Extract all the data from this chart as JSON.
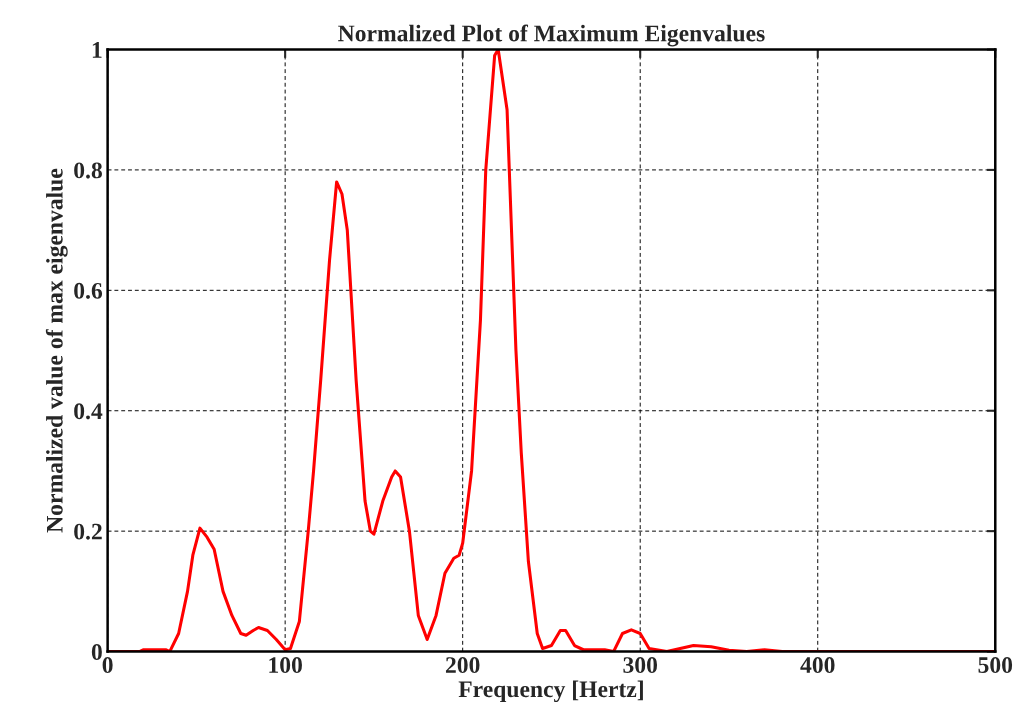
{
  "chart_data": {
    "type": "line",
    "title": "Normalized Plot of Maximum Eigenvalues",
    "xlabel": "Frequency [Hertz]",
    "ylabel": "Normalized value of max eigenvalue",
    "series": [
      {
        "color": "#ff0000",
        "x": [
          0,
          18,
          20,
          33,
          35,
          40,
          45,
          48,
          52,
          56,
          60,
          65,
          70,
          75,
          78,
          82,
          85,
          90,
          95,
          100,
          103,
          108,
          113,
          116,
          120,
          125,
          129,
          132,
          135,
          140,
          145,
          148,
          150,
          155,
          160,
          162,
          165,
          170,
          175,
          180,
          185,
          190,
          195,
          198,
          200,
          205,
          210,
          213,
          218,
          220,
          225,
          230,
          233,
          237,
          242,
          245,
          250,
          255,
          258,
          263,
          268,
          280,
          285,
          290,
          295,
          300,
          305,
          315,
          330,
          340,
          350,
          360,
          370,
          380,
          500
        ],
        "values": [
          0,
          0,
          0.003,
          0.003,
          0,
          0.03,
          0.1,
          0.16,
          0.205,
          0.19,
          0.17,
          0.1,
          0.06,
          0.03,
          0.027,
          0.035,
          0.04,
          0.035,
          0.02,
          0.003,
          0.005,
          0.05,
          0.2,
          0.3,
          0.45,
          0.65,
          0.78,
          0.76,
          0.7,
          0.45,
          0.25,
          0.2,
          0.195,
          0.25,
          0.29,
          0.3,
          0.29,
          0.2,
          0.06,
          0.02,
          0.06,
          0.13,
          0.155,
          0.16,
          0.18,
          0.3,
          0.55,
          0.8,
          0.99,
          1.0,
          0.9,
          0.5,
          0.33,
          0.15,
          0.03,
          0.005,
          0.01,
          0.035,
          0.035,
          0.01,
          0.003,
          0.003,
          0,
          0.03,
          0.036,
          0.03,
          0.005,
          0,
          0.01,
          0.008,
          0.002,
          0,
          0.003,
          0,
          0
        ]
      }
    ],
    "xlim": [
      0,
      500
    ],
    "xticks": [
      0,
      100,
      200,
      300,
      400,
      500
    ],
    "ylim": [
      0,
      1
    ],
    "yticks": [
      0,
      0.2,
      0.4,
      0.6,
      0.8,
      1
    ],
    "grid": true,
    "line_style": "solid",
    "marker": "none"
  }
}
